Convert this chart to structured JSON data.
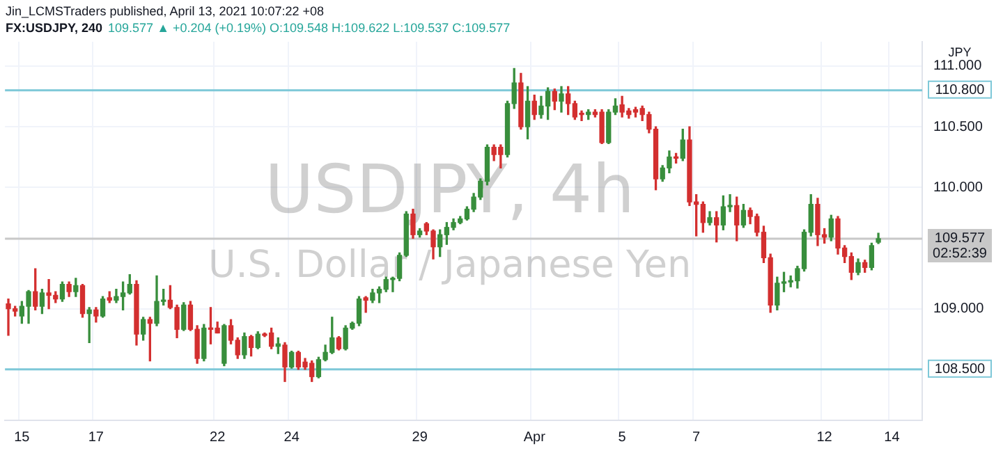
{
  "chart_data": {
    "type": "candlestick",
    "title": "FX:USDJPY, 240",
    "subtitle": "109.577 ▲ +0.204 (+0.19%) O:109.548 H:109.622 L:109.537 C:109.577",
    "ylabel": "JPY",
    "annotations": [
      "Jin_LCMSTraders published, April 13, 2021 10:07:22 +08",
      "USDJPY, 4h",
      "U.S. Dollar / Japanese Yen",
      "02:52:39"
    ],
    "categories": [
      null,
      null,
      "15",
      null,
      null,
      null,
      null,
      null,
      null,
      null,
      null,
      null,
      null,
      "17",
      null,
      null,
      null,
      null,
      null,
      null,
      null,
      null,
      null,
      null,
      null,
      null,
      null,
      null,
      null,
      null,
      null,
      "22",
      null,
      null,
      null,
      null,
      null,
      null,
      null,
      null,
      null,
      null,
      "24",
      null,
      null,
      null,
      null,
      null,
      null,
      null,
      null,
      null,
      null,
      null,
      null,
      null,
      null,
      null,
      null,
      null,
      null,
      "29",
      null,
      null,
      null,
      null,
      null,
      null,
      null,
      null,
      null,
      null,
      null,
      null,
      null,
      null,
      null,
      null,
      "Apr",
      null,
      null,
      null,
      null,
      null,
      null,
      null,
      null,
      null,
      null,
      null,
      null,
      "5",
      null,
      null,
      null,
      null,
      null,
      null,
      null,
      null,
      null,
      null,
      "7",
      null,
      null,
      null,
      null,
      null,
      null,
      null,
      null,
      null,
      null,
      null,
      null,
      null,
      null,
      null,
      null,
      null,
      null,
      "12",
      null,
      null,
      null,
      null,
      null,
      null,
      null,
      null,
      null,
      "14",
      null,
      null,
      null,
      null
    ],
    "ohlc": [
      [
        109.04,
        109.08,
        108.78,
        109.0
      ],
      [
        109.0,
        109.02,
        108.94,
        108.98
      ],
      [
        108.94,
        109.06,
        108.88,
        109.02
      ],
      [
        109.02,
        109.15,
        108.88,
        109.14
      ],
      [
        109.14,
        109.33,
        108.99,
        109.02
      ],
      [
        109.02,
        109.16,
        108.96,
        109.13
      ],
      [
        109.13,
        109.24,
        109.0,
        109.11
      ],
      [
        109.11,
        109.14,
        109.05,
        109.08
      ],
      [
        109.08,
        109.22,
        109.06,
        109.2
      ],
      [
        109.2,
        109.22,
        109.1,
        109.14
      ],
      [
        109.14,
        109.25,
        109.1,
        109.19
      ],
      [
        109.19,
        109.2,
        108.93,
        108.96
      ],
      [
        108.96,
        109.01,
        108.72,
        108.99
      ],
      [
        108.99,
        109.01,
        108.89,
        108.94
      ],
      [
        108.94,
        109.1,
        108.93,
        109.08
      ],
      [
        109.09,
        109.14,
        109.05,
        109.07
      ],
      [
        109.07,
        109.16,
        109.05,
        109.1
      ],
      [
        109.1,
        109.22,
        108.99,
        109.13
      ],
      [
        109.13,
        109.28,
        109.12,
        109.2
      ],
      [
        109.2,
        109.23,
        108.7,
        108.79
      ],
      [
        108.79,
        108.93,
        108.74,
        108.91
      ],
      [
        108.91,
        108.93,
        108.57,
        108.88
      ],
      [
        108.88,
        109.27,
        108.86,
        109.06
      ],
      [
        109.06,
        109.16,
        109.03,
        109.07
      ],
      [
        109.07,
        109.19,
        109.0,
        109.01
      ],
      [
        109.01,
        109.03,
        108.76,
        108.83
      ],
      [
        108.83,
        109.05,
        108.82,
        109.03
      ],
      [
        109.03,
        109.06,
        108.82,
        108.83
      ],
      [
        108.83,
        108.86,
        108.55,
        108.59
      ],
      [
        108.59,
        108.87,
        108.57,
        108.84
      ],
      [
        108.84,
        109.01,
        108.71,
        108.83
      ],
      [
        108.84,
        108.89,
        108.8,
        108.8
      ],
      [
        108.55,
        108.87,
        108.53,
        108.86
      ],
      [
        108.86,
        108.91,
        108.71,
        108.74
      ],
      [
        108.74,
        108.76,
        108.59,
        108.62
      ],
      [
        108.62,
        108.8,
        108.59,
        108.77
      ],
      [
        108.77,
        108.78,
        108.61,
        108.68
      ],
      [
        108.68,
        108.81,
        108.67,
        108.79
      ],
      [
        108.79,
        108.8,
        108.77,
        108.78
      ],
      [
        108.8,
        108.84,
        108.67,
        108.69
      ],
      [
        108.69,
        108.76,
        108.63,
        108.71
      ],
      [
        108.7,
        108.72,
        108.4,
        108.52
      ],
      [
        108.52,
        108.65,
        108.51,
        108.64
      ],
      [
        108.64,
        108.65,
        108.5,
        108.52
      ],
      [
        108.56,
        108.59,
        108.5,
        108.52
      ],
      [
        108.55,
        108.57,
        108.4,
        108.44
      ],
      [
        108.44,
        108.6,
        108.43,
        108.58
      ],
      [
        108.58,
        108.7,
        108.57,
        108.64
      ],
      [
        108.64,
        108.93,
        108.63,
        108.76
      ],
      [
        108.76,
        108.77,
        108.66,
        108.67
      ],
      [
        108.67,
        108.86,
        108.66,
        108.84
      ],
      [
        108.84,
        108.89,
        108.83,
        108.88
      ],
      [
        108.88,
        109.1,
        108.86,
        109.08
      ],
      [
        109.09,
        109.1,
        108.97,
        109.07
      ],
      [
        109.07,
        109.16,
        109.05,
        109.13
      ],
      [
        109.13,
        109.18,
        109.05,
        109.16
      ],
      [
        109.16,
        109.26,
        109.14,
        109.24
      ],
      [
        109.24,
        109.26,
        109.14,
        109.25
      ],
      [
        109.25,
        109.46,
        109.23,
        109.44
      ],
      [
        109.44,
        109.8,
        109.43,
        109.78
      ],
      [
        109.78,
        109.82,
        109.58,
        109.61
      ],
      [
        109.61,
        109.66,
        109.59,
        109.64
      ],
      [
        109.7,
        109.71,
        109.61,
        109.64
      ],
      [
        109.64,
        109.65,
        109.41,
        109.51
      ],
      [
        109.51,
        109.65,
        109.43,
        109.61
      ],
      [
        109.61,
        109.71,
        109.53,
        109.67
      ],
      [
        109.67,
        109.74,
        109.65,
        109.71
      ],
      [
        109.71,
        109.76,
        109.7,
        109.74
      ],
      [
        109.74,
        109.84,
        109.73,
        109.82
      ],
      [
        109.82,
        109.95,
        109.8,
        109.92
      ],
      [
        109.92,
        110.07,
        109.9,
        110.05
      ],
      [
        110.05,
        110.35,
        110.02,
        110.33
      ],
      [
        110.33,
        110.35,
        110.22,
        110.27
      ],
      [
        110.33,
        110.35,
        110.16,
        110.27
      ],
      [
        110.27,
        110.71,
        110.25,
        110.69
      ],
      [
        110.69,
        110.98,
        110.65,
        110.86
      ],
      [
        110.86,
        110.94,
        110.48,
        110.5
      ],
      [
        110.5,
        110.83,
        110.4,
        110.71
      ],
      [
        110.71,
        110.76,
        110.56,
        110.6
      ],
      [
        110.6,
        110.75,
        110.57,
        110.67
      ],
      [
        110.67,
        110.82,
        110.56,
        110.79
      ],
      [
        110.79,
        110.81,
        110.64,
        110.71
      ],
      [
        110.71,
        110.83,
        110.62,
        110.77
      ],
      [
        110.77,
        110.83,
        110.6,
        110.69
      ],
      [
        110.69,
        110.71,
        110.56,
        110.58
      ],
      [
        110.61,
        110.63,
        110.55,
        110.6
      ],
      [
        110.6,
        110.64,
        110.56,
        110.62
      ],
      [
        110.62,
        110.64,
        110.58,
        110.6
      ],
      [
        110.62,
        110.64,
        110.36,
        110.37
      ],
      [
        110.37,
        110.64,
        110.36,
        110.62
      ],
      [
        110.62,
        110.73,
        110.6,
        110.67
      ],
      [
        110.68,
        110.75,
        110.58,
        110.62
      ],
      [
        110.63,
        110.65,
        110.57,
        110.6
      ],
      [
        110.64,
        110.66,
        110.58,
        110.62
      ],
      [
        110.65,
        110.67,
        110.55,
        110.6
      ],
      [
        110.6,
        110.62,
        110.45,
        110.48
      ],
      [
        110.48,
        110.5,
        109.98,
        110.07
      ],
      [
        110.07,
        110.18,
        110.05,
        110.16
      ],
      [
        110.16,
        110.3,
        110.12,
        110.25
      ],
      [
        110.25,
        110.28,
        110.2,
        110.24
      ],
      [
        110.24,
        110.48,
        110.22,
        110.39
      ],
      [
        110.39,
        110.5,
        109.85,
        109.88
      ],
      [
        109.88,
        109.94,
        109.6,
        109.86
      ],
      [
        109.86,
        109.88,
        109.63,
        109.71
      ],
      [
        109.71,
        109.8,
        109.69,
        109.75
      ],
      [
        109.75,
        109.8,
        109.55,
        109.69
      ],
      [
        109.69,
        109.93,
        109.65,
        109.84
      ],
      [
        109.84,
        109.94,
        109.8,
        109.85
      ],
      [
        109.85,
        109.92,
        109.56,
        109.69
      ],
      [
        109.69,
        109.86,
        109.67,
        109.81
      ],
      [
        109.81,
        109.83,
        109.7,
        109.76
      ],
      [
        109.76,
        109.78,
        109.6,
        109.63
      ],
      [
        109.63,
        109.68,
        109.38,
        109.42
      ],
      [
        109.42,
        109.45,
        108.97,
        109.03
      ],
      [
        109.03,
        109.26,
        108.99,
        109.21
      ],
      [
        109.21,
        109.3,
        109.14,
        109.22
      ],
      [
        109.22,
        109.27,
        109.18,
        109.23
      ],
      [
        109.23,
        109.35,
        109.17,
        109.33
      ],
      [
        109.33,
        109.65,
        109.31,
        109.63
      ],
      [
        109.63,
        109.94,
        109.6,
        109.86
      ],
      [
        109.86,
        109.91,
        109.52,
        109.61
      ],
      [
        109.61,
        109.66,
        109.54,
        109.59
      ],
      [
        109.59,
        109.77,
        109.56,
        109.74
      ],
      [
        109.74,
        109.76,
        109.45,
        109.5
      ],
      [
        109.5,
        109.52,
        109.38,
        109.43
      ],
      [
        109.43,
        109.46,
        109.24,
        109.3
      ],
      [
        109.3,
        109.41,
        109.28,
        109.38
      ],
      [
        109.38,
        109.4,
        109.3,
        109.34
      ],
      [
        109.34,
        109.54,
        109.32,
        109.52
      ],
      [
        109.548,
        109.622,
        109.537,
        109.577
      ],
      null,
      null,
      null,
      null,
      null,
      null
    ],
    "colors": [
      "#d32f2f",
      "#d32f2f",
      "#388e3c",
      "#388e3c",
      "#d32f2f",
      "#388e3c",
      "#d32f2f",
      "#d32f2f",
      "#388e3c",
      "#d32f2f",
      "#388e3c",
      "#d32f2f",
      "#388e3c",
      "#d32f2f",
      "#388e3c",
      "#d32f2f",
      "#388e3c",
      "#388e3c",
      "#388e3c",
      "#d32f2f",
      "#388e3c",
      "#d32f2f",
      "#388e3c",
      "#388e3c",
      "#d32f2f",
      "#d32f2f",
      "#388e3c",
      "#d32f2f",
      "#d32f2f",
      "#388e3c",
      "#d32f2f",
      "#d32f2f",
      "#388e3c",
      "#d32f2f",
      "#d32f2f",
      "#388e3c",
      "#d32f2f",
      "#388e3c",
      "#d32f2f",
      "#d32f2f",
      "#388e3c",
      "#d32f2f",
      "#388e3c",
      "#d32f2f",
      "#d32f2f",
      "#d32f2f",
      "#388e3c",
      "#388e3c",
      "#388e3c",
      "#d32f2f",
      "#388e3c",
      "#388e3c",
      "#388e3c",
      "#d32f2f",
      "#388e3c",
      "#388e3c",
      "#388e3c",
      "#388e3c",
      "#388e3c",
      "#388e3c",
      "#d32f2f",
      "#388e3c",
      "#d32f2f",
      "#d32f2f",
      "#388e3c",
      "#388e3c",
      "#388e3c",
      "#388e3c",
      "#388e3c",
      "#388e3c",
      "#388e3c",
      "#388e3c",
      "#d32f2f",
      "#d32f2f",
      "#388e3c",
      "#388e3c",
      "#d32f2f",
      "#388e3c",
      "#d32f2f",
      "#388e3c",
      "#388e3c",
      "#d32f2f",
      "#388e3c",
      "#d32f2f",
      "#d32f2f",
      "#d32f2f",
      "#388e3c",
      "#d32f2f",
      "#d32f2f",
      "#388e3c",
      "#388e3c",
      "#d32f2f",
      "#d32f2f",
      "#d32f2f",
      "#d32f2f",
      "#d32f2f",
      "#d32f2f",
      "#388e3c",
      "#388e3c",
      "#d32f2f",
      "#388e3c",
      "#d32f2f",
      "#d32f2f",
      "#d32f2f",
      "#388e3c",
      "#d32f2f",
      "#388e3c",
      "#388e3c",
      "#d32f2f",
      "#388e3c",
      "#d32f2f",
      "#d32f2f",
      "#d32f2f",
      "#d32f2f",
      "#388e3c",
      "#388e3c",
      "#388e3c",
      "#388e3c",
      "#388e3c",
      "#388e3c",
      "#d32f2f",
      "#d32f2f",
      "#388e3c",
      "#d32f2f",
      "#d32f2f",
      "#d32f2f",
      "#388e3c",
      "#d32f2f",
      "#388e3c",
      "#388e3c",
      null,
      null,
      null,
      null,
      null,
      null
    ],
    "ylim": [
      108.08,
      111.2
    ],
    "yticks": [
      {
        "value": 109,
        "label": "109.000"
      },
      {
        "value": 110,
        "label": "110.000"
      },
      {
        "value": 110.5,
        "label": "110.500"
      },
      {
        "value": 111,
        "label": "111.000"
      }
    ],
    "ref_lines": [
      {
        "axis": "y",
        "value": 110.8,
        "label": "110.800",
        "color": "#7ec8d8",
        "line_style": "solid"
      },
      {
        "axis": "y",
        "value": 108.5,
        "label": "108.500",
        "color": "#7ec8d8",
        "line_style": "solid"
      },
      {
        "axis": "y",
        "value": 109.577,
        "label": "109.577",
        "color": "#c8c8c8",
        "line_style": "solid"
      }
    ],
    "grid": true
  }
}
